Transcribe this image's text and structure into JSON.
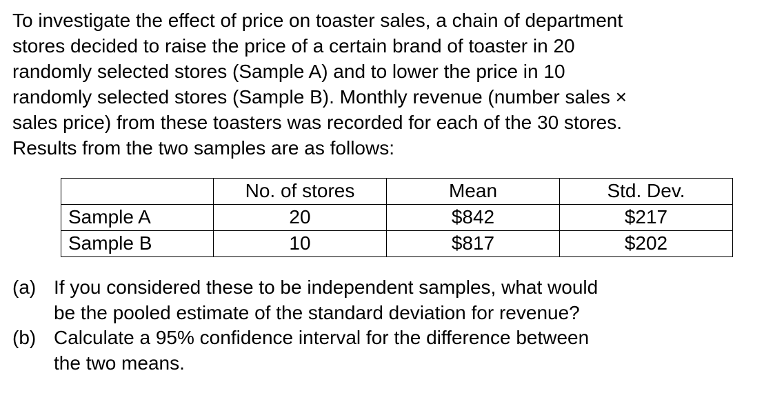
{
  "intro": {
    "line1": "To investigate the effect of price on toaster sales, a chain of department",
    "line2": "stores decided to raise the price of a certain brand of toaster in 20",
    "line3": "randomly selected stores (Sample A) and to lower the price in 10",
    "line4_pre": "randomly selected stores (Sample B).  Monthly revenue (number sales ",
    "mult_sign": "×",
    "line5": "sales price) from these toasters was recorded for each of the 30 stores.",
    "line6": "Results from the two samples are as follows:"
  },
  "table": {
    "headers": {
      "col1": "",
      "col2": "No. of stores",
      "col3": "Mean",
      "col4": "Std. Dev."
    },
    "rows": [
      {
        "label": "Sample A",
        "n": "20",
        "mean": "$842",
        "sd": "$217"
      },
      {
        "label": "Sample B",
        "n": "10",
        "mean": "$817",
        "sd": "$202"
      }
    ]
  },
  "questions": {
    "a": {
      "letter": "(a)",
      "line1": "If you considered these to be independent samples, what would",
      "line2": "be the pooled estimate of the standard deviation for revenue?"
    },
    "b": {
      "letter": "(b)",
      "line1": "Calculate a 95% confidence interval for the difference between",
      "line2": "the two means."
    }
  },
  "style": {
    "font_family": "Arial",
    "font_size_pt": 21,
    "text_color": "#000000",
    "background_color": "#ffffff",
    "border_color": "#000000"
  }
}
